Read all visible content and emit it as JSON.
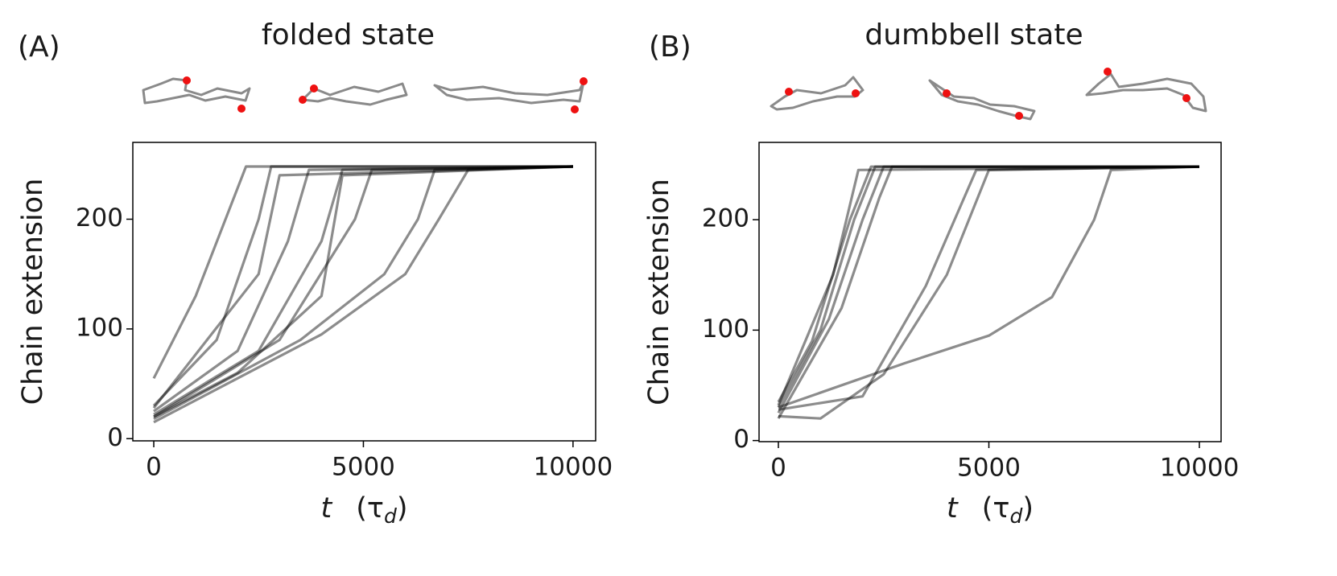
{
  "chart_data": [
    {
      "type": "line",
      "panel_label": "(A)",
      "title": "folded state",
      "ylabel": "Chain extension",
      "xlabel": [
        "t",
        "(τ",
        "d",
        ")"
      ],
      "xlim": [
        -500,
        10540
      ],
      "ylim": [
        -2,
        270
      ],
      "xticks": [
        0,
        5000,
        10000
      ],
      "yticks": [
        0,
        100,
        200
      ],
      "alpha": 0.45,
      "series": [
        {
          "color": "#000000",
          "x": [
            0,
            1000,
            2200,
            10000
          ],
          "values": [
            55,
            130,
            248,
            248
          ]
        },
        {
          "color": "#000000",
          "x": [
            0,
            1500,
            2500,
            2800,
            10000
          ],
          "values": [
            30,
            90,
            200,
            248,
            248
          ]
        },
        {
          "color": "#000000",
          "x": [
            0,
            2000,
            3200,
            3700,
            10000
          ],
          "values": [
            25,
            80,
            180,
            245,
            248
          ]
        },
        {
          "color": "#000000",
          "x": [
            0,
            2500,
            4000,
            4500,
            10000
          ],
          "values": [
            22,
            80,
            180,
            245,
            248
          ]
        },
        {
          "color": "#000000",
          "x": [
            0,
            3000,
            4800,
            5200,
            10000
          ],
          "values": [
            20,
            90,
            200,
            245,
            248
          ]
        },
        {
          "color": "#000000",
          "x": [
            0,
            3500,
            5500,
            6300,
            6700,
            10000
          ],
          "values": [
            18,
            90,
            150,
            200,
            245,
            248
          ]
        },
        {
          "color": "#000000",
          "x": [
            0,
            4000,
            6000,
            6800,
            7500,
            10000
          ],
          "values": [
            15,
            95,
            150,
            200,
            245,
            248
          ]
        },
        {
          "color": "#000000",
          "x": [
            0,
            2000,
            4000,
            4500,
            10000
          ],
          "values": [
            20,
            60,
            130,
            240,
            248
          ]
        },
        {
          "color": "#000000",
          "x": [
            0,
            2500,
            3000,
            10000
          ],
          "values": [
            28,
            150,
            240,
            248
          ]
        }
      ]
    },
    {
      "type": "line",
      "panel_label": "(B)",
      "title": "dumbbell state",
      "ylabel": "Chain extension",
      "xlabel": [
        "t",
        "(τ",
        "d",
        ")"
      ],
      "xlim": [
        -459,
        10516
      ],
      "ylim": [
        -1,
        270
      ],
      "xticks": [
        0,
        5000,
        10000
      ],
      "yticks": [
        0,
        100,
        200
      ],
      "alpha": 0.45,
      "series": [
        {
          "color": "#000000",
          "x": [
            0,
            1000,
            1800,
            2300,
            10000
          ],
          "values": [
            30,
            100,
            200,
            248,
            248
          ]
        },
        {
          "color": "#000000",
          "x": [
            0,
            1200,
            2000,
            2500,
            10000
          ],
          "values": [
            25,
            110,
            200,
            248,
            248
          ]
        },
        {
          "color": "#000000",
          "x": [
            0,
            800,
            1700,
            2200,
            10000
          ],
          "values": [
            35,
            90,
            200,
            248,
            248
          ]
        },
        {
          "color": "#000000",
          "x": [
            0,
            1500,
            2400,
            2700,
            10000
          ],
          "values": [
            20,
            120,
            220,
            248,
            248
          ]
        },
        {
          "color": "#000000",
          "x": [
            0,
            2000,
            3500,
            4700,
            10000
          ],
          "values": [
            28,
            40,
            140,
            245,
            248
          ]
        },
        {
          "color": "#000000",
          "x": [
            0,
            1000,
            2500,
            4000,
            5000,
            10000
          ],
          "values": [
            22,
            20,
            60,
            150,
            245,
            248
          ]
        },
        {
          "color": "#000000",
          "x": [
            0,
            3000,
            5000,
            6500,
            7500,
            7900,
            10000
          ],
          "values": [
            30,
            70,
            95,
            130,
            200,
            245,
            248
          ]
        },
        {
          "color": "#000000",
          "x": [
            0,
            1300,
            1900,
            10000
          ],
          "values": [
            32,
            150,
            245,
            248
          ]
        }
      ]
    }
  ]
}
